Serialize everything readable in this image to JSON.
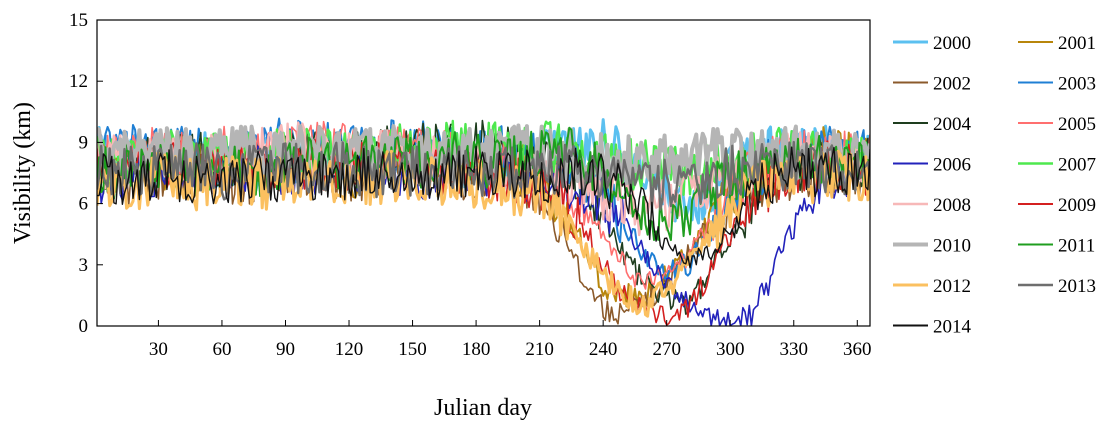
{
  "chart_data": {
    "type": "line",
    "title": "",
    "xlabel": "Julian day",
    "ylabel": "Visibility  (km)",
    "xlim": [
      1,
      366
    ],
    "ylim": [
      0,
      15
    ],
    "x_ticks": [
      "30",
      "60",
      "90",
      "120",
      "150",
      "180",
      "210",
      "240",
      "270",
      "300",
      "330",
      "360"
    ],
    "y_ticks": [
      "0",
      "3",
      "6",
      "9",
      "12",
      "15"
    ],
    "grid": false,
    "legend_position": "right",
    "x_sample": [
      1,
      15,
      30,
      45,
      60,
      75,
      80,
      90,
      105,
      120,
      135,
      150,
      165,
      180,
      195,
      210,
      220,
      230,
      240,
      250,
      260,
      270,
      280,
      290,
      300,
      310,
      320,
      330,
      345,
      366
    ],
    "series": [
      {
        "name": "2000",
        "color": "#5bc0f0",
        "width": 3.0,
        "values": [
          8.5,
          8.2,
          8.0,
          8.3,
          8.1,
          7.9,
          8.0,
          8.2,
          8.4,
          8.1,
          8.6,
          8.3,
          8.0,
          7.8,
          7.5,
          8.4,
          8.7,
          8.6,
          9.0,
          8.2,
          7.5,
          6.5,
          5.5,
          6.5,
          7.5,
          8.2,
          8.5,
          8.3,
          8.6,
          8.2
        ]
      },
      {
        "name": "2001",
        "color": "#b8860b",
        "width": 2.0,
        "values": [
          8.2,
          7.8,
          7.6,
          7.9,
          7.5,
          7.7,
          7.4,
          8.0,
          7.8,
          7.5,
          7.9,
          8.3,
          7.6,
          7.8,
          8.0,
          7.2,
          6.0,
          4.0,
          2.0,
          1.5,
          1.5,
          2.5,
          3.5,
          5.0,
          6.5,
          7.2,
          7.6,
          7.9,
          8.5,
          8.0
        ]
      },
      {
        "name": "2002",
        "color": "#8b5a2b",
        "width": 1.6,
        "values": [
          7.8,
          7.2,
          7.0,
          7.4,
          7.1,
          7.3,
          7.2,
          7.5,
          7.4,
          7.2,
          7.6,
          7.5,
          7.3,
          7.4,
          7.6,
          6.5,
          5.0,
          2.5,
          0.8,
          0.6,
          1.2,
          2.2,
          3.5,
          5.0,
          6.2,
          7.0,
          7.3,
          7.5,
          7.8,
          7.5
        ]
      },
      {
        "name": "2003",
        "color": "#1f7fd4",
        "width": 2.0,
        "values": [
          8.6,
          8.8,
          8.4,
          8.9,
          8.5,
          8.7,
          8.8,
          9.0,
          8.7,
          8.6,
          8.9,
          8.8,
          8.7,
          8.5,
          8.6,
          8.4,
          8.0,
          7.5,
          6.5,
          5.0,
          3.5,
          2.5,
          3.0,
          4.5,
          6.5,
          7.5,
          8.0,
          8.4,
          8.6,
          8.3
        ]
      },
      {
        "name": "2004",
        "color": "#1e3d1e",
        "width": 1.6,
        "values": [
          7.6,
          7.9,
          8.1,
          8.3,
          8.0,
          8.4,
          8.2,
          8.5,
          8.6,
          8.3,
          8.8,
          8.6,
          8.7,
          8.9,
          8.5,
          8.3,
          8.0,
          7.0,
          5.5,
          3.5,
          2.0,
          1.5,
          1.0,
          2.5,
          4.5,
          6.0,
          7.0,
          7.8,
          8.2,
          7.9
        ]
      },
      {
        "name": "2005",
        "color": "#ff6f6f",
        "width": 1.6,
        "values": [
          8.0,
          8.3,
          8.5,
          8.1,
          8.6,
          8.4,
          8.7,
          8.5,
          8.9,
          8.7,
          8.4,
          8.6,
          8.3,
          8.1,
          7.9,
          7.5,
          7.0,
          6.0,
          4.5,
          3.0,
          2.0,
          2.5,
          3.5,
          5.0,
          6.5,
          7.5,
          8.0,
          8.2,
          8.4,
          8.1
        ]
      },
      {
        "name": "2006",
        "color": "#2222bb",
        "width": 1.6,
        "values": [
          7.2,
          7.5,
          7.3,
          7.8,
          7.6,
          7.4,
          7.9,
          7.7,
          7.5,
          7.6,
          7.8,
          7.4,
          7.6,
          7.7,
          7.5,
          7.3,
          7.0,
          6.5,
          6.0,
          5.0,
          3.5,
          2.0,
          1.0,
          0.4,
          0.3,
          0.5,
          2.5,
          5.5,
          7.5,
          7.8
        ]
      },
      {
        "name": "2007",
        "color": "#4ee84e",
        "width": 2.4,
        "values": [
          8.3,
          8.1,
          8.4,
          8.6,
          8.2,
          8.5,
          8.3,
          8.7,
          8.4,
          8.6,
          8.8,
          8.5,
          8.7,
          8.9,
          8.6,
          8.8,
          8.7,
          8.5,
          8.2,
          8.0,
          7.8,
          7.5,
          7.6,
          7.8,
          8.0,
          8.2,
          8.4,
          8.6,
          8.5,
          8.3
        ]
      },
      {
        "name": "2008",
        "color": "#f7b8b8",
        "width": 2.4,
        "values": [
          7.9,
          8.2,
          8.0,
          8.4,
          8.1,
          8.3,
          8.5,
          8.8,
          8.6,
          8.4,
          8.5,
          8.3,
          8.1,
          8.0,
          7.8,
          7.6,
          7.4,
          7.0,
          6.5,
          6.0,
          5.5,
          6.0,
          6.5,
          7.0,
          7.5,
          7.8,
          8.0,
          8.2,
          8.3,
          8.1
        ]
      },
      {
        "name": "2009",
        "color": "#d42020",
        "width": 1.6,
        "values": [
          7.5,
          7.8,
          7.6,
          7.9,
          7.7,
          8.0,
          7.8,
          8.1,
          7.9,
          7.7,
          8.0,
          7.8,
          7.6,
          7.5,
          7.3,
          7.0,
          6.5,
          5.0,
          3.0,
          1.5,
          0.8,
          0.5,
          1.0,
          2.5,
          4.5,
          6.0,
          7.0,
          7.5,
          7.8,
          7.6
        ]
      },
      {
        "name": "2010",
        "color": "#b5b5b5",
        "width": 4.0,
        "values": [
          8.4,
          8.3,
          8.5,
          8.4,
          8.6,
          8.5,
          8.4,
          8.6,
          8.5,
          8.4,
          8.6,
          8.5,
          8.3,
          8.4,
          8.5,
          8.6,
          8.4,
          8.3,
          8.2,
          8.1,
          8.0,
          8.2,
          8.3,
          8.4,
          8.5,
          8.4,
          8.3,
          8.5,
          8.4,
          8.3
        ]
      },
      {
        "name": "2011",
        "color": "#1f9e1f",
        "width": 2.0,
        "values": [
          7.6,
          7.4,
          7.8,
          7.5,
          7.9,
          7.7,
          7.6,
          7.8,
          8.0,
          7.8,
          8.2,
          8.0,
          8.3,
          8.1,
          7.9,
          8.5,
          8.6,
          8.4,
          7.5,
          6.5,
          5.5,
          5.0,
          5.5,
          6.5,
          7.2,
          7.6,
          7.8,
          8.0,
          8.2,
          7.8
        ]
      },
      {
        "name": "2012",
        "color": "#fbc060",
        "width": 3.0,
        "values": [
          7.0,
          6.8,
          7.2,
          6.9,
          7.3,
          7.1,
          6.9,
          7.4,
          7.2,
          7.0,
          7.3,
          7.5,
          7.2,
          7.0,
          6.8,
          6.5,
          5.5,
          4.0,
          2.5,
          1.5,
          1.0,
          1.8,
          3.0,
          4.5,
          6.0,
          6.8,
          7.0,
          7.2,
          7.4,
          7.1
        ]
      },
      {
        "name": "2013",
        "color": "#6e6e6e",
        "width": 2.4,
        "values": [
          7.7,
          7.5,
          7.6,
          7.8,
          7.4,
          7.7,
          7.5,
          7.9,
          7.6,
          7.8,
          7.5,
          7.7,
          7.8,
          7.6,
          7.5,
          7.7,
          7.6,
          7.5,
          7.2,
          7.0,
          6.8,
          7.0,
          7.2,
          7.4,
          7.6,
          7.7,
          7.8,
          7.9,
          7.8,
          7.6
        ]
      },
      {
        "name": "2014",
        "color": "#111111",
        "width": 1.4,
        "values": [
          7.3,
          7.1,
          7.4,
          7.2,
          7.0,
          7.3,
          7.2,
          7.5,
          7.3,
          7.4,
          7.6,
          7.4,
          7.5,
          7.7,
          7.6,
          7.4,
          7.3,
          7.5,
          7.2,
          6.5,
          5.5,
          4.0,
          3.0,
          3.5,
          5.0,
          6.5,
          7.2,
          7.5,
          7.7,
          7.5
        ]
      }
    ]
  }
}
